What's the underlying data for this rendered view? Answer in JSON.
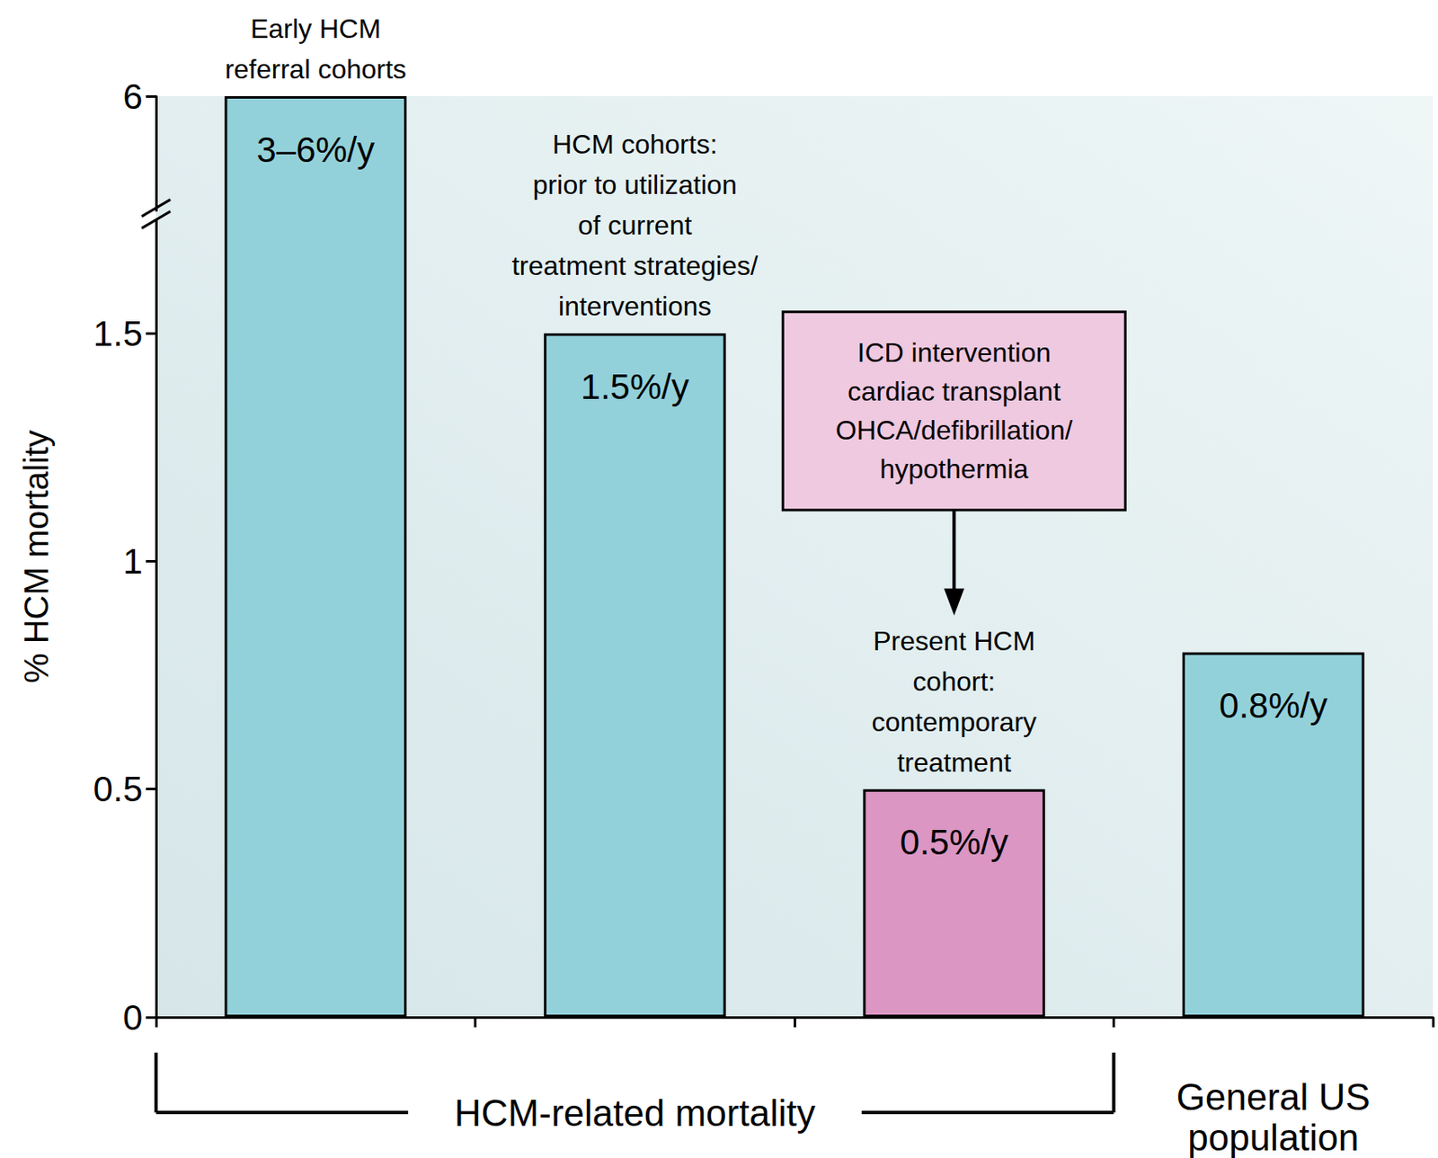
{
  "chart_data": {
    "type": "bar",
    "ylabel": "% HCM mortality",
    "categories": [
      "Early HCM\nreferral cohorts",
      "HCM cohorts:\nprior to utilization\nof current\ntreatment strategies/\ninterventions",
      "Present HCM\ncohort:\ncontemporary\ntreatment",
      "General US\npopulation"
    ],
    "values": [
      6,
      1.5,
      0.5,
      0.8
    ],
    "value_labels": [
      "3–6%/y",
      "1.5%/y",
      "0.5%/y",
      "0.8%/y"
    ],
    "colors": [
      "#93d1da",
      "#93d1da",
      "#db96c3",
      "#93d1da"
    ],
    "ylim": [
      0,
      6
    ],
    "yticks": [
      0,
      0.5,
      1,
      1.5,
      6
    ],
    "ybreak": [
      1.75,
      5.75
    ],
    "grid": false,
    "data_labels": true,
    "annotation": {
      "text": "ICD intervention\ncardiac transplant\nOHCA/defibrillation/\nhypothermia",
      "category": 2
    },
    "x_groups": [
      {
        "label": "HCM-related mortality",
        "span": 3
      },
      {
        "label": "General US\npopulation",
        "span": 1
      }
    ]
  }
}
